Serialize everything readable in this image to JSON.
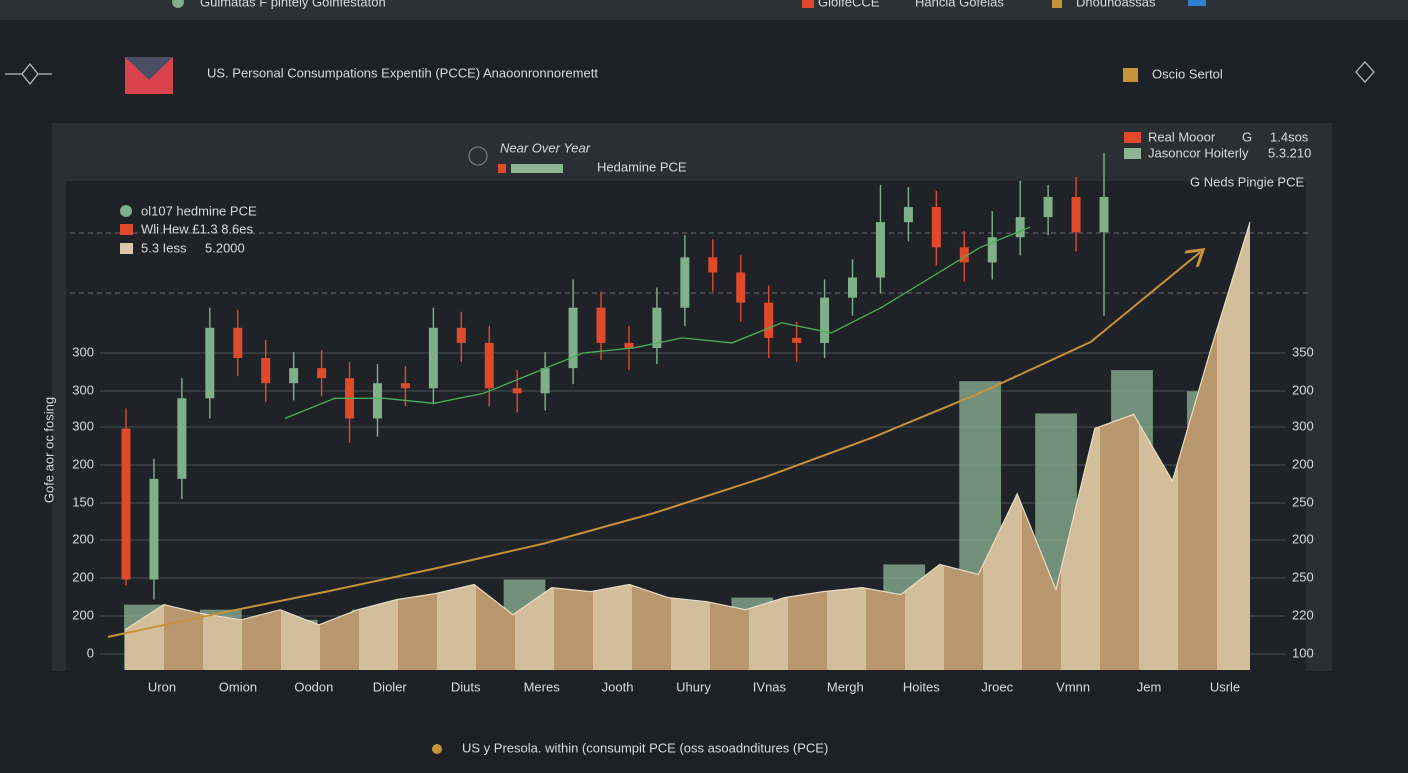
{
  "top_bar": {
    "left": "Gulmatas F pintely Goinfestaton",
    "items": [
      "GlolfeCCE",
      "Hancia Gofelas",
      "Dnounoassas"
    ]
  },
  "header": {
    "title": "US. Personal Consumpations Expentih (PCCE) Anaoonronnoremett",
    "badge": "Oscio Sertol"
  },
  "chart_data": {
    "type": "candlestick",
    "top_legend": [
      "Near Over Year",
      "Hedamine PCE"
    ],
    "right_legend": [
      [
        "Real Mooor",
        "G",
        "1.4sos"
      ],
      [
        "Jasoncor Hoiterly",
        "5.3.210"
      ],
      [
        "G Neds Pingie PCE"
      ]
    ],
    "inner_legend": [
      "ol107 hedmine PCE",
      "Wli Hew £1.3 8.6es",
      "5.3 Iess",
      "5.2000"
    ],
    "ylabel": "Gofe aor oc fosing",
    "left_axis_labels": [
      "300",
      "300",
      "300",
      "200",
      "150",
      "200",
      "200",
      "200",
      "0"
    ],
    "right_axis_labels": [
      "350",
      "200",
      "300",
      "200",
      "250",
      "200",
      "250",
      "220",
      "100"
    ],
    "categories": [
      "Uron",
      "Omion",
      "Oodon",
      "Dioler",
      "Diuts",
      "Meres",
      "Jooth",
      "Uhury",
      "IVnas",
      "Mergh",
      "Hoites",
      "Jroec",
      "Vmnn",
      "Jem",
      "Usrle"
    ],
    "ylim": [
      0,
      600
    ],
    "up_color": "#7fb08a",
    "down_color": "#e0492a",
    "open": [
      224,
      74,
      174,
      254,
      324,
      294,
      269,
      284,
      274,
      234,
      269,
      264,
      324,
      309,
      264,
      259,
      284,
      344,
      309,
      304,
      344,
      394,
      379,
      349,
      314,
      309,
      354,
      374,
      429,
      444,
      404,
      389,
      414,
      434,
      454,
      419
    ],
    "high": [
      244,
      194,
      274,
      344,
      342,
      312,
      300,
      302,
      290,
      288,
      286,
      344,
      340,
      326,
      282,
      300,
      372,
      360,
      326,
      364,
      416,
      412,
      396,
      366,
      330,
      372,
      392,
      466,
      464,
      460,
      420,
      440,
      470,
      466,
      474,
      498
    ],
    "low": [
      68,
      54,
      154,
      234,
      276,
      250,
      252,
      256,
      210,
      216,
      246,
      248,
      290,
      246,
      240,
      242,
      268,
      292,
      282,
      288,
      326,
      360,
      330,
      294,
      290,
      294,
      336,
      358,
      410,
      386,
      370,
      372,
      396,
      416,
      400,
      336
    ],
    "close": [
      74,
      174,
      254,
      324,
      294,
      269,
      284,
      274,
      234,
      269,
      264,
      324,
      309,
      264,
      259,
      284,
      344,
      309,
      304,
      344,
      394,
      379,
      349,
      314,
      309,
      354,
      374,
      429,
      444,
      404,
      389,
      414,
      434,
      454,
      419,
      454
    ],
    "area": {
      "color": "#b8966e",
      "values": [
        24,
        49,
        40,
        34,
        44,
        29,
        44,
        54,
        60,
        69,
        39,
        66,
        62,
        69,
        56,
        52,
        44,
        56,
        62,
        66,
        59,
        89,
        79,
        159,
        64,
        224,
        238,
        172,
        304,
        429
      ]
    },
    "bars": {
      "color": "#8fb596",
      "values": [
        49,
        44,
        34,
        44,
        56,
        74,
        59,
        44,
        56,
        59,
        89,
        271,
        239,
        282,
        261
      ]
    },
    "average_line": {
      "color": "#4caf5a",
      "values": [
        234,
        254,
        254,
        249,
        259,
        279,
        299,
        304,
        314,
        309,
        329,
        319,
        344,
        374,
        404,
        424
      ]
    },
    "trend_line": {
      "color": "#c8923a",
      "values": [
        17,
        40,
        62,
        85,
        110,
        140,
        175,
        215,
        260,
        310,
        399
      ]
    },
    "footer_legend": "US y Presola. within (consumpit PCE (oss asoadnditures (PCE)"
  }
}
